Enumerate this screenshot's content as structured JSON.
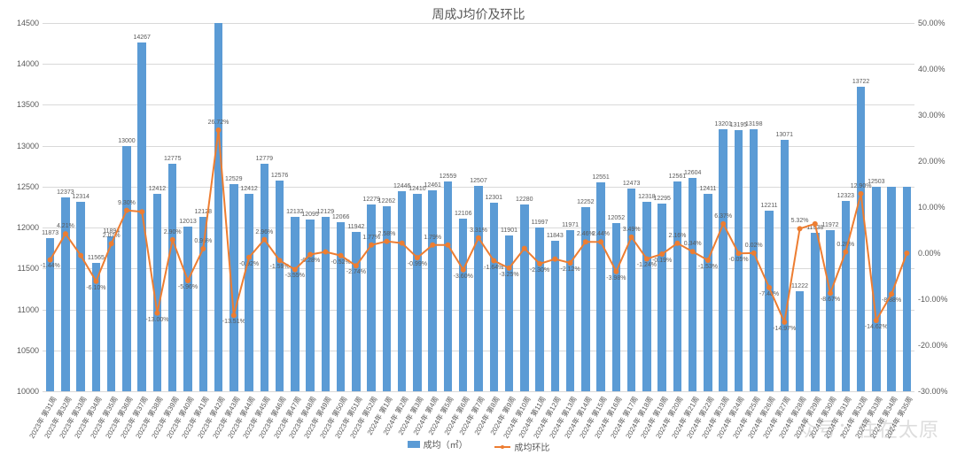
{
  "chart": {
    "type": "bar+line",
    "title": "周成J均价及环比",
    "background_color": "#ffffff",
    "grid_color": "#d9d9d9",
    "title_fontsize": 14,
    "axis_fontsize": 9,
    "data_label_fontsize": 7,
    "bar_color": "#5b9bd5",
    "line_color": "#ed7d31",
    "line_width": 2,
    "marker_size": 3,
    "y_left": {
      "min": 10000,
      "max": 14500,
      "step": 500,
      "label_format": ""
    },
    "y_right": {
      "min": -30,
      "max": 50,
      "step": 10,
      "label_format": "%"
    },
    "legend": {
      "bar": "成均（㎡）",
      "line": "成均环比"
    },
    "categories": [
      "2023年 第31周",
      "2023年 第32周",
      "2023年 第33周",
      "2023年 第34周",
      "2023年 第35周",
      "2023年 第36周",
      "2023年 第37周",
      "2023年 第38周",
      "2023年 第39周",
      "2023年 第40周",
      "2023年 第41周",
      "2023年 第42周",
      "2023年 第43周",
      "2023年 第44周",
      "2023年 第45周",
      "2023年 第46周",
      "2023年 第47周",
      "2023年 第48周",
      "2023年 第49周",
      "2023年 第50周",
      "2023年 第51周",
      "2023年 第52周",
      "2024年 第1周",
      "2024年 第2周",
      "2024年 第3周",
      "2024年 第4周",
      "2024年 第5周",
      "2024年 第6周",
      "2024年 第7周",
      "2024年 第8周",
      "2024年 第9周",
      "2024年 第10周",
      "2024年 第11周",
      "2024年 第12周",
      "2024年 第13周",
      "2024年 第14周",
      "2024年 第15周",
      "2024年 第16周",
      "2024年 第17周",
      "2024年 第18周",
      "2024年 第19周",
      "2024年 第20周",
      "2024年 第21周",
      "2024年 第22周",
      "2024年 第23周",
      "2024年 第24周",
      "2024年 第25周",
      "2024年 第26周",
      "2024年 第27周",
      "2024年 第28周",
      "2024年 第29周",
      "2024年 第30周",
      "2024年 第31周",
      "2024年 第32周",
      "2024年 第33周",
      "2024年 第34周",
      "2024年 第35周"
    ],
    "bar_values": [
      11873,
      12373,
      12314,
      11565,
      11894,
      13000,
      14267,
      12412,
      12775,
      12013,
      12128,
      14500,
      12529,
      12412,
      12779,
      12576,
      12132,
      12095,
      12129,
      12066,
      11942,
      12279,
      12262,
      12446,
      12410,
      12461,
      12559,
      12106,
      12507,
      12301,
      11901,
      12280,
      11997,
      11843,
      11971,
      12252,
      12551,
      12052,
      12473,
      12318,
      12295,
      12561,
      12604,
      12411,
      13201,
      13195,
      13198,
      12211,
      13071,
      11222,
      11938,
      11972,
      12323,
      13722,
      12503,
      12503,
      12503
    ],
    "bar_labels": [
      "11873",
      "12373",
      "12314",
      "11565",
      "11894",
      "13000",
      "14267",
      "12412",
      "12775",
      "12013",
      "12128",
      "",
      "12529",
      "12412",
      "12779",
      "12576",
      "12132",
      "12095",
      "12129",
      "12066",
      "11942",
      "12279",
      "12262",
      "12446",
      "12410",
      "12461",
      "12559",
      "12106",
      "12507",
      "12301",
      "11901",
      "12280",
      "11997",
      "11843",
      "11971",
      "12252",
      "12551",
      "12052",
      "12473",
      "12318",
      "12295",
      "12561",
      "12604",
      "12411",
      "13201",
      "13195",
      "13198",
      "12211",
      "13071",
      "11222",
      "11938",
      "11972",
      "12323",
      "13722",
      "12503",
      "",
      ""
    ],
    "line_values": [
      -1.44,
      4.21,
      -0.5,
      -6.1,
      2.07,
      9.3,
      9.0,
      -13.0,
      2.9,
      -5.96,
      0.96,
      26.72,
      -13.51,
      -0.92,
      2.96,
      -1.59,
      -3.55,
      -0.28,
      0.28,
      -0.52,
      -2.74,
      1.77,
      2.58,
      2.18,
      -0.99,
      1.79,
      1.79,
      -3.6,
      3.31,
      -1.64,
      -3.25,
      1.04,
      -2.3,
      -1.28,
      -2.12,
      2.46,
      2.44,
      -3.98,
      3.49,
      -1.24,
      -0.19,
      2.16,
      0.34,
      -1.53,
      6.37,
      -0.05,
      0.02,
      -7.48,
      -14.97,
      5.32,
      6.38,
      -8.67,
      0.28,
      12.9,
      -14.62,
      -8.88,
      0
    ],
    "line_labels": [
      "-1.44%",
      "4.21%",
      "",
      "-6.10%",
      "2.07%",
      "9.30%",
      "",
      "-13.00%",
      "2.90%",
      "-5.96%",
      "0.96%",
      "26.72%",
      "-13.51%",
      "-0.92%",
      "2.96%",
      "-1.59%",
      "-3.55%",
      "-0.28%",
      "",
      "-0.52%",
      "-2.74%",
      "1.77%",
      "2.58%",
      "",
      "-0.99%",
      "1.79%",
      "",
      "-3.60%",
      "3.31%",
      "-1.64%",
      "-3.25%",
      "",
      "-2.30%",
      "",
      "-2.12%",
      "2.46%",
      "2.44%",
      "-3.98%",
      "3.49%",
      "-1.24%",
      "-0.19%",
      "2.16%",
      "0.34%",
      "-1.53%",
      "6.37%",
      "-0.05%",
      "0.02%",
      "-7.48%",
      "-14.97%",
      "5.32%",
      "",
      "-8.67%",
      "0.28%",
      "12.90%",
      "-14.62%",
      "-8.88%",
      ""
    ]
  },
  "watermark": "众号：住在太原"
}
